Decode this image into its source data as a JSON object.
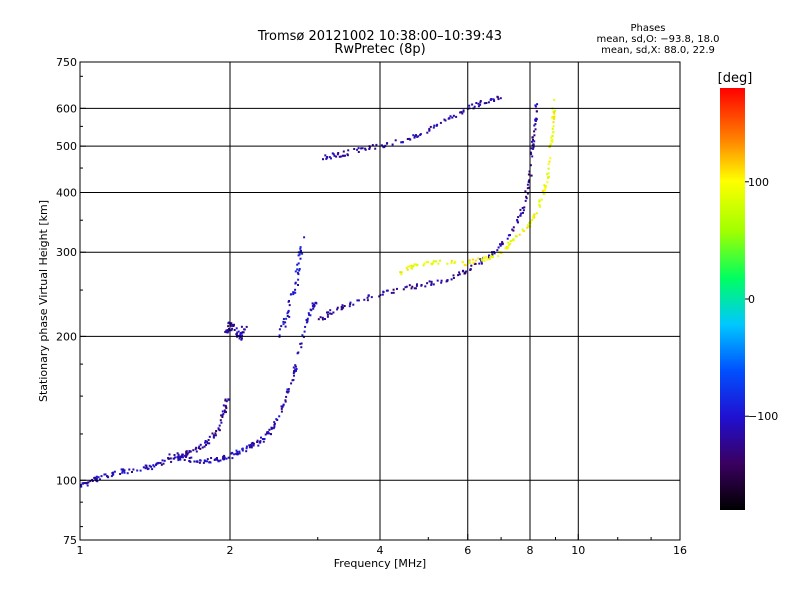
{
  "header": {
    "title": "Tromsø 20121002 10:38:00–10:39:43",
    "subtitle": "RwPretec (8p)"
  },
  "phase_box": {
    "label": "Phases",
    "line_o": "mean, sd,O: −93.8, 18.0",
    "line_x": "mean, sd,X: 88.0, 22.9"
  },
  "chart_data": {
    "type": "scatter",
    "xlabel": "Frequency [MHz]",
    "ylabel": "Stationary phase Virtual Height [km]",
    "xscale": "log",
    "yscale": "log",
    "xlim": [
      1,
      16
    ],
    "ylim": [
      75,
      750
    ],
    "grid": true,
    "x_ticks": [
      1,
      2,
      4,
      6,
      8,
      10,
      16
    ],
    "y_ticks": [
      75,
      100,
      200,
      300,
      400,
      500,
      600,
      750
    ],
    "x_tick_labels": [
      "1",
      "2",
      "4",
      "6",
      "8",
      "10",
      "16"
    ],
    "y_tick_labels": [
      "75",
      "100",
      "200",
      "300",
      "400",
      "500",
      "600",
      "750"
    ],
    "grid_x": [
      2,
      4,
      6,
      8,
      10
    ],
    "grid_y": [
      100,
      200,
      300,
      400,
      500,
      600
    ],
    "colorbar": {
      "label": "[deg]",
      "range": [
        -180,
        180
      ],
      "ticks": [
        100,
        0,
        -100
      ],
      "tick_labels": [
        "100",
        "0",
        "−100"
      ]
    },
    "traces": [
      {
        "name_hint": "low E-layer trace",
        "phase": -110,
        "spread": 0.013,
        "points": [
          [
            1.0,
            97
          ],
          [
            1.05,
            99
          ],
          [
            1.1,
            102
          ],
          [
            1.2,
            104
          ],
          [
            1.3,
            105
          ],
          [
            1.4,
            107
          ],
          [
            1.5,
            110
          ],
          [
            1.6,
            112
          ],
          [
            1.7,
            110
          ],
          [
            1.8,
            110
          ],
          [
            1.9,
            110
          ],
          [
            2.0,
            112
          ],
          [
            2.1,
            115
          ],
          [
            2.2,
            118
          ],
          [
            2.3,
            120
          ],
          [
            2.4,
            126
          ],
          [
            2.5,
            135
          ],
          [
            2.6,
            150
          ],
          [
            2.7,
            170
          ],
          [
            2.8,
            200
          ],
          [
            2.9,
            225
          ],
          [
            3.0,
            240
          ]
        ]
      },
      {
        "name_hint": "E-layer upper branch",
        "phase": -120,
        "spread": 0.013,
        "points": [
          [
            1.5,
            112
          ],
          [
            1.6,
            113
          ],
          [
            1.7,
            115
          ],
          [
            1.8,
            120
          ],
          [
            1.9,
            128
          ],
          [
            1.95,
            140
          ],
          [
            1.98,
            150
          ]
        ]
      },
      {
        "name_hint": "F1 cusp",
        "phase": -100,
        "spread": 0.02,
        "points": [
          [
            2.5,
            200
          ],
          [
            2.6,
            220
          ],
          [
            2.7,
            250
          ],
          [
            2.75,
            280
          ],
          [
            2.8,
            320
          ]
        ]
      },
      {
        "name_hint": "F1 cluster",
        "phase": -115,
        "spread": 0.02,
        "points": [
          [
            1.95,
            205
          ],
          [
            2.0,
            210
          ],
          [
            2.05,
            205
          ],
          [
            2.1,
            200
          ],
          [
            2.15,
            210
          ]
        ]
      },
      {
        "name_hint": "F2 O-trace",
        "phase": -120,
        "spread": 0.012,
        "points": [
          [
            3.0,
            215
          ],
          [
            3.2,
            225
          ],
          [
            3.5,
            235
          ],
          [
            4.0,
            245
          ],
          [
            4.5,
            252
          ],
          [
            5.0,
            258
          ],
          [
            5.5,
            265
          ],
          [
            6.0,
            275
          ],
          [
            6.5,
            290
          ],
          [
            7.0,
            310
          ],
          [
            7.5,
            340
          ],
          [
            7.8,
            380
          ],
          [
            8.0,
            430
          ],
          [
            8.1,
            500
          ],
          [
            8.2,
            560
          ],
          [
            8.25,
            620
          ]
        ]
      },
      {
        "name_hint": "F2 X-trace",
        "phase": 95,
        "spread": 0.012,
        "points": [
          [
            4.3,
            270
          ],
          [
            4.7,
            280
          ],
          [
            5.2,
            285
          ],
          [
            6.0,
            285
          ],
          [
            6.5,
            290
          ],
          [
            7.0,
            300
          ],
          [
            7.5,
            320
          ],
          [
            8.0,
            345
          ],
          [
            8.4,
            380
          ],
          [
            8.7,
            430
          ],
          [
            8.8,
            500
          ],
          [
            8.9,
            560
          ],
          [
            8.95,
            620
          ]
        ]
      },
      {
        "name_hint": "multi-hop trace",
        "phase": -115,
        "spread": 0.012,
        "points": [
          [
            3.0,
            470
          ],
          [
            3.3,
            480
          ],
          [
            3.6,
            490
          ],
          [
            4.0,
            500
          ],
          [
            4.5,
            515
          ],
          [
            5.0,
            540
          ],
          [
            5.5,
            570
          ],
          [
            6.0,
            600
          ],
          [
            6.5,
            620
          ],
          [
            7.0,
            630
          ]
        ]
      }
    ]
  }
}
